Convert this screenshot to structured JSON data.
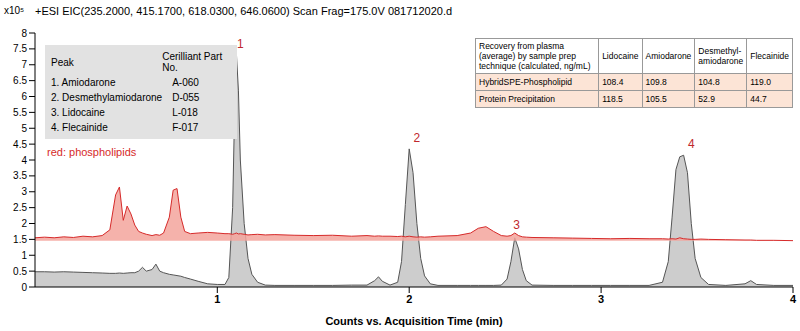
{
  "chart_data": {
    "type": "area",
    "title": "+ESI EIC(235.2000, 415.1700, 618.0300, 646.0600) Scan Frag=175.0V 081712020.d",
    "x_label": "Counts vs. Acquisition Time (min)",
    "y_label": "x10⁵",
    "x": [
      0.05,
      0.1,
      0.15,
      0.2,
      0.25,
      0.3,
      0.35,
      0.4,
      0.44,
      0.47,
      0.49,
      0.51,
      0.53,
      0.55,
      0.57,
      0.59,
      0.61,
      0.63,
      0.66,
      0.68,
      0.7,
      0.72,
      0.75,
      0.77,
      0.79,
      0.81,
      0.83,
      0.86,
      0.9,
      0.95,
      1.0,
      1.04,
      1.06,
      1.08,
      1.09,
      1.1,
      1.11,
      1.12,
      1.14,
      1.16,
      1.18,
      1.21,
      1.25,
      1.3,
      1.4,
      1.5,
      1.6,
      1.7,
      1.78,
      1.82,
      1.84,
      1.86,
      1.9,
      1.94,
      1.96,
      1.98,
      2.0,
      2.02,
      2.04,
      2.06,
      2.08,
      2.11,
      2.15,
      2.25,
      2.32,
      2.36,
      2.4,
      2.44,
      2.48,
      2.51,
      2.53,
      2.55,
      2.57,
      2.59,
      2.61,
      2.64,
      2.75,
      2.85,
      2.95,
      3.05,
      3.15,
      3.25,
      3.32,
      3.35,
      3.37,
      3.39,
      3.41,
      3.43,
      3.45,
      3.47,
      3.49,
      3.52,
      3.56,
      3.65,
      3.75,
      3.78,
      3.81,
      3.9,
      4.0
    ],
    "series": [
      {
        "color": "#555555",
        "values": [
          0.48,
          0.48,
          0.47,
          0.48,
          0.47,
          0.46,
          0.45,
          0.44,
          0.43,
          0.43,
          0.44,
          0.43,
          0.44,
          0.45,
          0.45,
          0.5,
          0.62,
          0.5,
          0.55,
          0.72,
          0.5,
          0.45,
          0.4,
          0.38,
          0.36,
          0.34,
          0.3,
          0.25,
          0.18,
          0.1,
          0.08,
          0.08,
          0.3,
          2.5,
          5.5,
          7.3,
          6.2,
          4.0,
          2.0,
          0.9,
          0.4,
          0.15,
          0.06,
          0.05,
          0.05,
          0.05,
          0.05,
          0.06,
          0.06,
          0.2,
          0.32,
          0.18,
          0.06,
          0.15,
          0.8,
          2.6,
          4.35,
          3.6,
          2.0,
          0.9,
          0.35,
          0.1,
          0.05,
          0.05,
          0.05,
          0.05,
          0.05,
          0.05,
          0.06,
          0.25,
          0.8,
          1.55,
          1.2,
          0.55,
          0.2,
          0.06,
          0.05,
          0.05,
          0.05,
          0.05,
          0.05,
          0.05,
          0.15,
          0.8,
          2.2,
          3.7,
          4.1,
          4.15,
          3.6,
          2.0,
          0.9,
          0.3,
          0.08,
          0.05,
          0.1,
          0.2,
          0.08,
          0.05,
          0.05
        ]
      },
      {
        "color": "#d62a2a",
        "values": [
          1.55,
          1.57,
          1.55,
          1.58,
          1.56,
          1.6,
          1.58,
          1.62,
          1.8,
          2.9,
          3.15,
          2.1,
          2.55,
          2.3,
          1.95,
          1.75,
          1.7,
          1.66,
          1.62,
          1.65,
          1.63,
          1.7,
          2.2,
          3.05,
          3.1,
          2.2,
          1.75,
          1.68,
          1.7,
          1.72,
          1.7,
          1.68,
          1.68,
          1.66,
          1.68,
          1.7,
          1.67,
          1.68,
          1.66,
          1.64,
          1.65,
          1.66,
          1.64,
          1.65,
          1.63,
          1.62,
          1.63,
          1.6,
          1.62,
          1.6,
          1.61,
          1.6,
          1.6,
          1.59,
          1.6,
          1.58,
          1.6,
          1.58,
          1.57,
          1.58,
          1.57,
          1.58,
          1.6,
          1.62,
          1.7,
          1.85,
          1.9,
          1.75,
          1.62,
          1.6,
          1.62,
          1.7,
          1.62,
          1.58,
          1.57,
          1.56,
          1.55,
          1.54,
          1.53,
          1.52,
          1.53,
          1.52,
          1.52,
          1.51,
          1.52,
          1.51,
          1.55,
          1.52,
          1.51,
          1.5,
          1.5,
          1.51,
          1.5,
          1.49,
          1.48,
          1.48,
          1.47,
          1.47,
          1.46
        ]
      }
    ],
    "xlim": [
      0.05,
      4
    ],
    "xticks": [
      1,
      2,
      3,
      4
    ],
    "ylim": [
      0,
      8
    ],
    "yticks": [
      0,
      0.5,
      1,
      1.5,
      2,
      2.5,
      3,
      3.5,
      4,
      4.5,
      5,
      5.5,
      6,
      6.5,
      7,
      7.5,
      8
    ],
    "grid": false,
    "annotations": [
      {
        "text": "red: phospholipids",
        "color": "#d62a2a"
      }
    ],
    "peak_labels": [
      {
        "label": "1",
        "x": 1.12,
        "y": 7.3
      },
      {
        "label": "2",
        "x": 2.04,
        "y": 4.35
      },
      {
        "label": "3",
        "x": 2.56,
        "y": 1.6
      },
      {
        "label": "4",
        "x": 3.47,
        "y": 4.15
      }
    ],
    "peak_table": {
      "header": [
        "Peak",
        "Cerilliant Part No."
      ],
      "rows": [
        [
          "1. Amiodarone",
          "A-060"
        ],
        [
          "2. Desmethylamiodarone",
          "D-055"
        ],
        [
          "3. Lidocaine",
          "L-018"
        ],
        [
          "4. Flecainide",
          "F-017"
        ]
      ]
    },
    "recovery_table": {
      "header": [
        "Recovery from plasma (average) by sample prep technique (calculated, ng/mL)",
        "Lidocaine",
        "Amiodarone",
        "Desmethyl-amiodarone",
        "Flecainide"
      ],
      "rows": [
        [
          "HybridSPE-Phospholipid",
          "108.4",
          "109.8",
          "104.8",
          "119.0"
        ],
        [
          "Protein Precipitation",
          "118.5",
          "105.5",
          "52.9",
          "44.7"
        ]
      ]
    }
  }
}
